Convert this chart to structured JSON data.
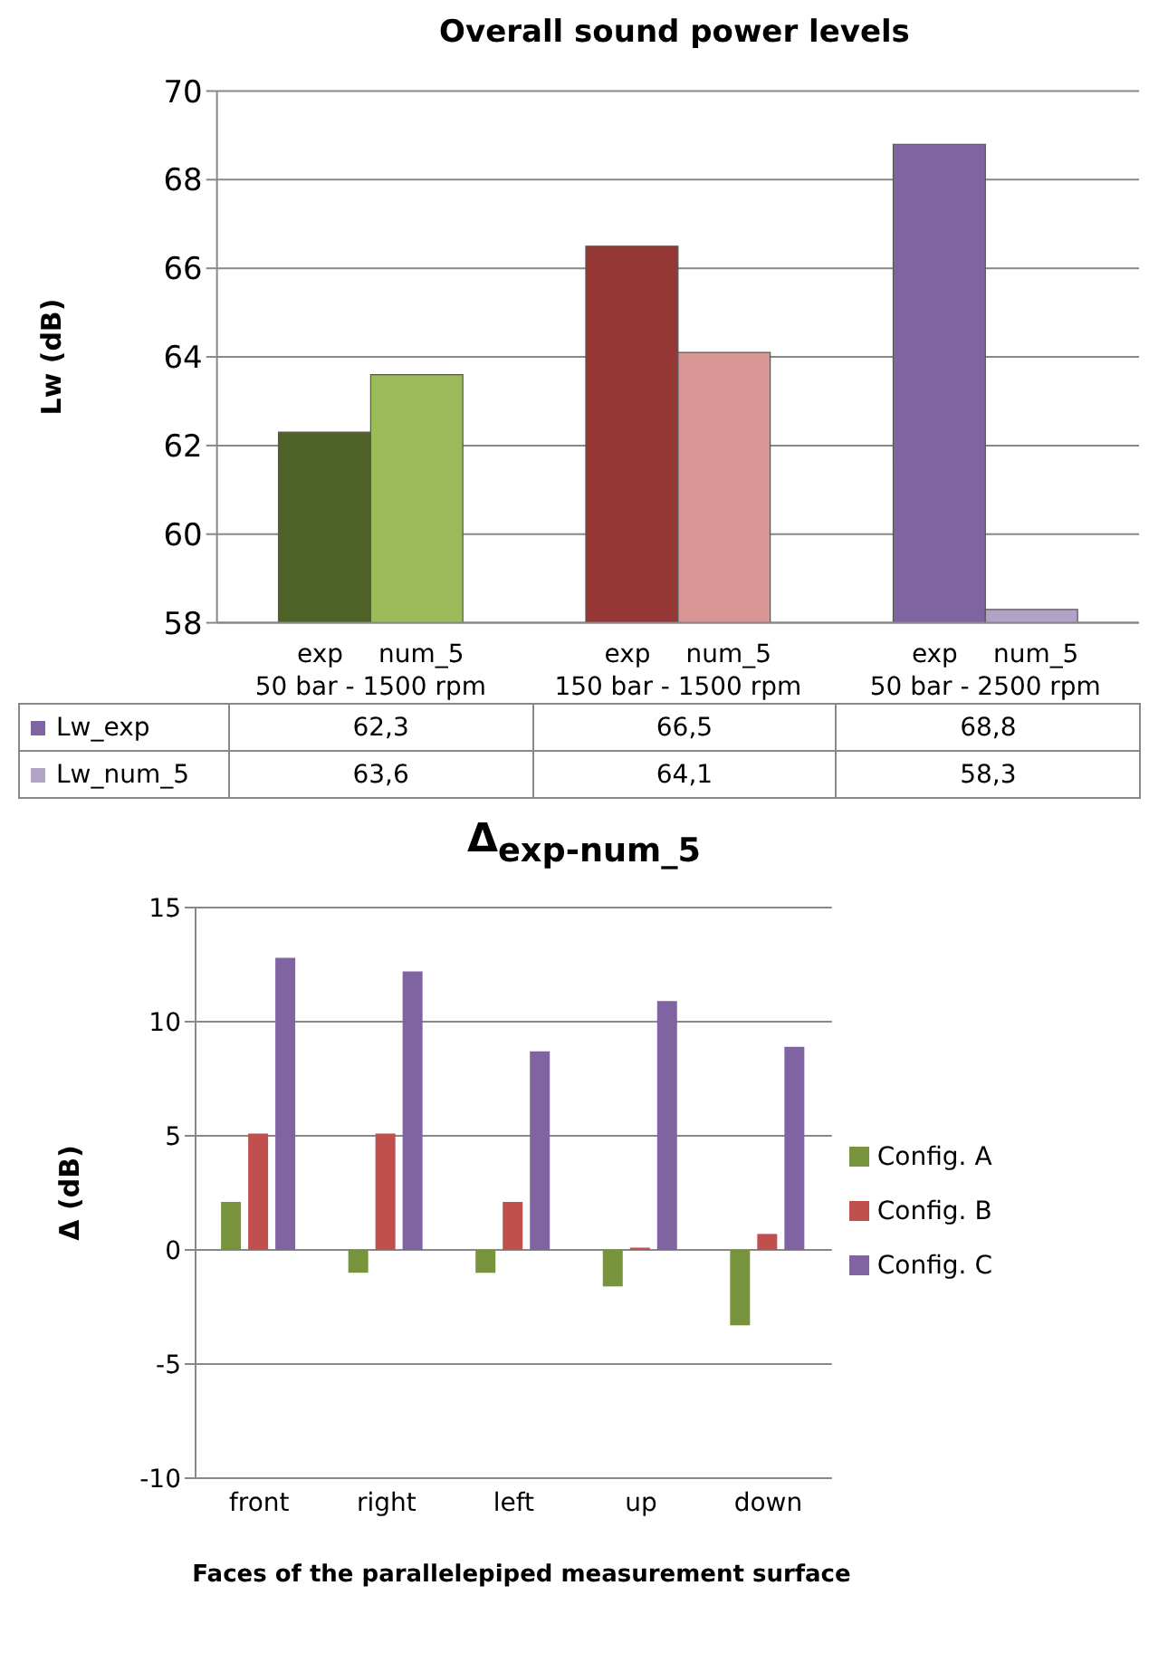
{
  "chart_data": [
    {
      "type": "bar",
      "title": "Overall sound power levels",
      "ylabel": "Lw (dB)",
      "categories": [
        "50 bar - 1500 rpm",
        "150 bar - 1500 rpm",
        "50 bar - 2500 rpm"
      ],
      "series": [
        {
          "name": "Lw_exp",
          "color": "#8064a2",
          "colors": [
            "#4f6228",
            "#953735",
            "#8064a2"
          ],
          "values": [
            62.3,
            66.5,
            68.8
          ],
          "value_labels": [
            "62,3",
            "66,5",
            "68,8"
          ]
        },
        {
          "name": "Lw_num_5",
          "color": "#b3a2c7",
          "colors": [
            "#9bbb59",
            "#d99694",
            "#b3a2c7"
          ],
          "values": [
            63.6,
            64.1,
            58.3
          ],
          "value_labels": [
            "63,6",
            "64,1",
            "58,3"
          ]
        }
      ],
      "annotations": [
        "exp",
        "num_5",
        "exp",
        "num_5",
        "exp",
        "num_5"
      ],
      "ylim": [
        58,
        70
      ],
      "yticks": [
        58,
        60,
        62,
        64,
        66,
        68,
        70
      ],
      "grid": "y",
      "legend": "bottom"
    },
    {
      "type": "bar",
      "title": "Δ$_{exp-num_5}$",
      "xlabel": "Faces of the parallelepiped  measurement surface",
      "ylabel": "Δ (dB)",
      "categories": [
        "front",
        "right",
        "left",
        "up",
        "down"
      ],
      "series": [
        {
          "name": "Config. A",
          "color": "#77933c",
          "values": [
            2.1,
            -1.0,
            -1.0,
            -1.6,
            -3.3
          ]
        },
        {
          "name": "Config. B",
          "color": "#c0504d",
          "values": [
            5.1,
            5.1,
            2.1,
            0.1,
            0.7
          ]
        },
        {
          "name": "Config. C",
          "color": "#8064a2",
          "values": [
            12.8,
            12.2,
            8.7,
            10.9,
            8.9
          ]
        }
      ],
      "ylim": [
        -10,
        15
      ],
      "yticks": [
        -10,
        -5,
        0,
        5,
        10,
        15
      ],
      "grid": "y",
      "legend": "right"
    }
  ]
}
